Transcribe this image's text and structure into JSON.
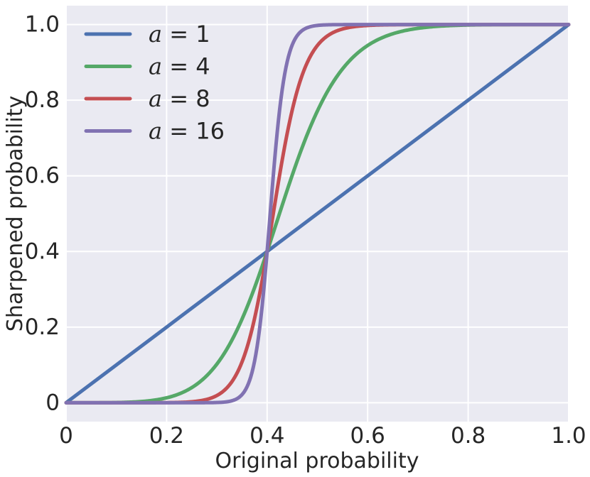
{
  "chart_data": {
    "type": "line",
    "title": "",
    "xlabel": "Original probability",
    "ylabel": "Sharpened probability",
    "xlim": [
      0,
      1
    ],
    "ylim": [
      -0.05,
      1.05
    ],
    "xticks": [
      0,
      0.2,
      0.4,
      0.6,
      0.8,
      1.0
    ],
    "xtick_labels": [
      "0",
      "0.2",
      "0.4",
      "0.6",
      "0.8",
      "1.0"
    ],
    "yticks": [
      0,
      0.2,
      0.4,
      0.6,
      0.8,
      1.0
    ],
    "ytick_labels": [
      "0",
      "0.2",
      "0.4",
      "0.6",
      "0.8",
      "1.0"
    ],
    "grid": true,
    "legend_position": "top-left",
    "background_color": "#eaeaf2",
    "grid_color": "#ffffff",
    "x": [
      0,
      0.05,
      0.1,
      0.15,
      0.2,
      0.25,
      0.3,
      0.35,
      0.4,
      0.45,
      0.5,
      0.55,
      0.6,
      0.65,
      0.7,
      0.75,
      0.8,
      0.85,
      0.9,
      0.95,
      1.0
    ],
    "series": [
      {
        "name": "a = 1",
        "legend_prefix": "a",
        "legend_value": "1",
        "color": "#4c72b0",
        "values": [
          0,
          0.05,
          0.1,
          0.15,
          0.2,
          0.25,
          0.3,
          0.35,
          0.4,
          0.45,
          0.5,
          0.55,
          0.6,
          0.65,
          0.7,
          0.75,
          0.8,
          0.85,
          0.9,
          0.95,
          1.0
        ]
      },
      {
        "name": "a = 4",
        "legend_prefix": "a",
        "legend_value": "4",
        "color": "#55a868",
        "values": [
          0,
          0.0001,
          0.001,
          0.005,
          0.016,
          0.041,
          0.097,
          0.216,
          0.4,
          0.6,
          0.771,
          0.878,
          0.936,
          0.967,
          0.984,
          0.993,
          0.997,
          0.999,
          1.0,
          1.0,
          1.0
        ]
      },
      {
        "name": "a = 8",
        "legend_prefix": "a",
        "legend_value": "8",
        "color": "#c44e52",
        "values": [
          0,
          0,
          0,
          0,
          0.0004,
          0.003,
          0.017,
          0.095,
          0.4,
          0.775,
          0.919,
          0.973,
          0.99,
          0.996,
          0.999,
          1.0,
          1.0,
          1.0,
          1.0,
          1.0,
          1.0
        ]
      },
      {
        "name": "a = 16",
        "legend_prefix": "a",
        "legend_value": "16",
        "color": "#8172b2",
        "values": [
          0,
          0,
          0,
          0,
          0,
          0,
          0.0005,
          0.017,
          0.4,
          0.922,
          0.992,
          0.999,
          1.0,
          1.0,
          1.0,
          1.0,
          1.0,
          1.0,
          1.0,
          1.0,
          1.0
        ]
      }
    ]
  }
}
